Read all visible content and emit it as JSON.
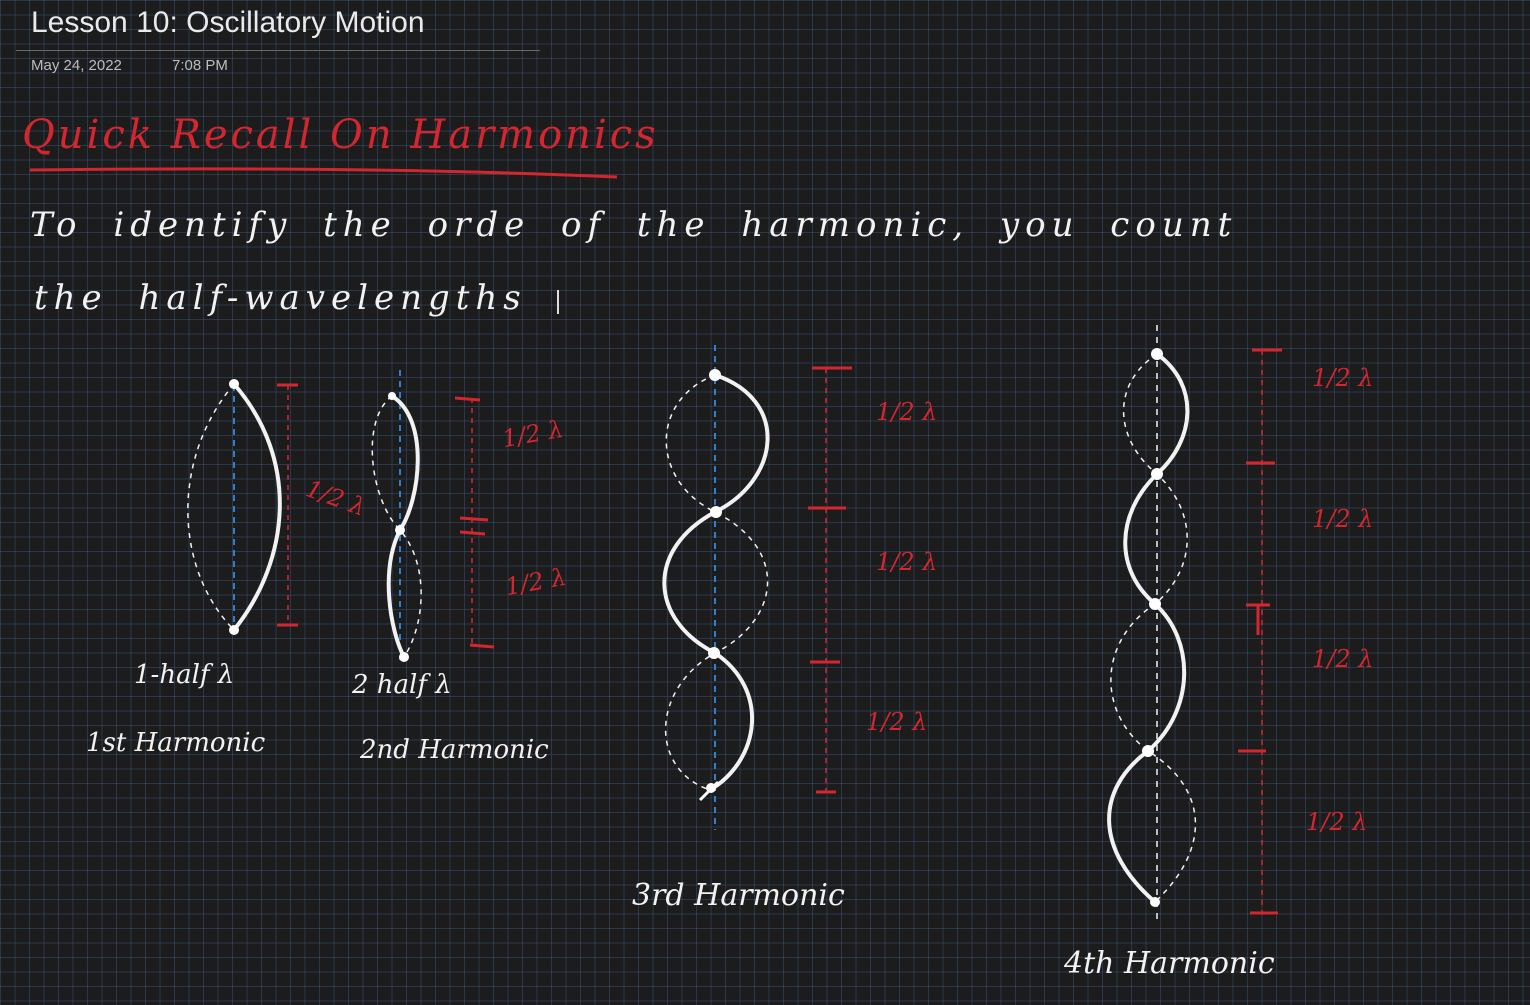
{
  "page": {
    "title": "Lesson 10: Oscillatory Motion",
    "date": "May 24, 2022",
    "time": "7:08 PM"
  },
  "notes": {
    "heading": "Quick Recall On Harmonics",
    "line1": "To identify the orde of the harmonic, you count",
    "line2": "the half-wavelengths"
  },
  "figures": [
    {
      "count_label": "1-half λ",
      "name_label": "1st Harmonic",
      "segment_labels": [
        "1/2 λ"
      ]
    },
    {
      "count_label": "2 half λ",
      "name_label": "2nd Harmonic",
      "segment_labels": [
        "1/2 λ",
        "1/2 λ"
      ]
    },
    {
      "count_label": "",
      "name_label": "3rd Harmonic",
      "segment_labels": [
        "1/2 λ",
        "1/2 λ",
        "1/2 λ"
      ]
    },
    {
      "count_label": "",
      "name_label": "4th Harmonic",
      "segment_labels": [
        "1/2 λ",
        "1/2 λ",
        "1/2 λ",
        "1/2 λ"
      ]
    }
  ],
  "colors": {
    "ink": "#f2f2f2",
    "red_ink": "#d3262f",
    "axis_blue": "#2f7fd0",
    "grid": "#3c5a82"
  }
}
